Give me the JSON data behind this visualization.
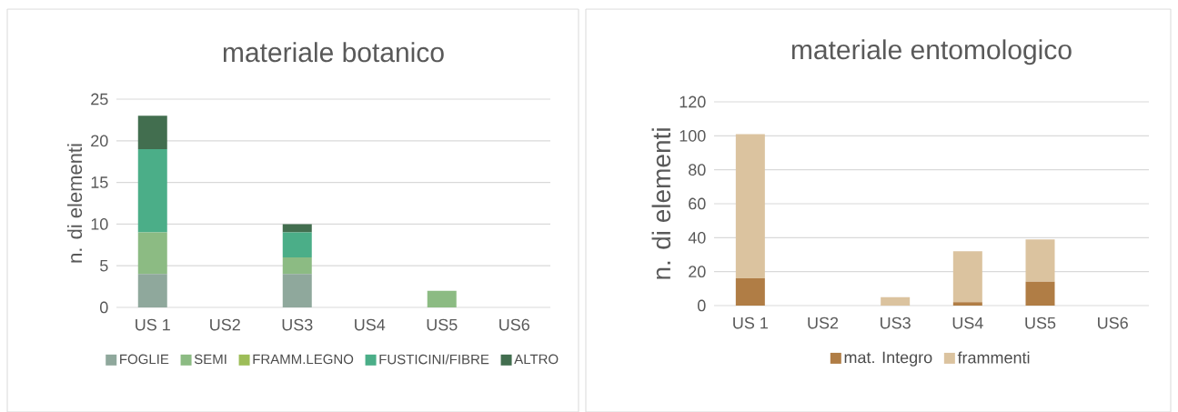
{
  "chart_data": [
    {
      "type": "bar",
      "title": "materiale botanico",
      "ylabel": "n. di elementi",
      "stacked": true,
      "grid": "y",
      "legend": "bottom",
      "categories": [
        "US 1",
        "US2",
        "US3",
        "US4",
        "US5",
        "US6"
      ],
      "ylim": [
        0,
        25
      ],
      "yticks": [
        0,
        5,
        10,
        15,
        20,
        25
      ],
      "series": [
        {
          "name": "FOGLIE",
          "color": "#8fa89c",
          "values": [
            4,
            0,
            4,
            0,
            0,
            0
          ]
        },
        {
          "name": "SEMI",
          "color": "#8cbb83",
          "values": [
            5,
            0,
            2,
            0,
            2,
            0
          ]
        },
        {
          "name": "FRAMM.LEGNO",
          "color": "#9dbd58",
          "values": [
            0,
            0,
            0,
            0,
            0,
            0
          ]
        },
        {
          "name": "FUSTICINI/FIBRE",
          "color": "#4bae88",
          "values": [
            10,
            0,
            3,
            0,
            0,
            0
          ]
        },
        {
          "name": "ALTRO",
          "color": "#426e4f",
          "values": [
            4,
            0,
            1,
            0,
            0,
            0
          ]
        }
      ]
    },
    {
      "type": "bar",
      "title": "materiale entomologico",
      "ylabel": "n. di elementi",
      "stacked": true,
      "grid": "y",
      "legend": "bottom",
      "categories": [
        "US 1",
        "US2",
        "US3",
        "US4",
        "US5",
        "US6"
      ],
      "ylim": [
        0,
        120
      ],
      "yticks": [
        0,
        20,
        40,
        60,
        80,
        100,
        120
      ],
      "series": [
        {
          "name": "mat. Integro",
          "color": "#b07d45",
          "values": [
            16,
            0,
            0,
            2,
            14,
            0
          ]
        },
        {
          "name": "frammenti",
          "color": "#dbc39f",
          "values": [
            85,
            0,
            5,
            30,
            25,
            0
          ]
        }
      ]
    }
  ]
}
